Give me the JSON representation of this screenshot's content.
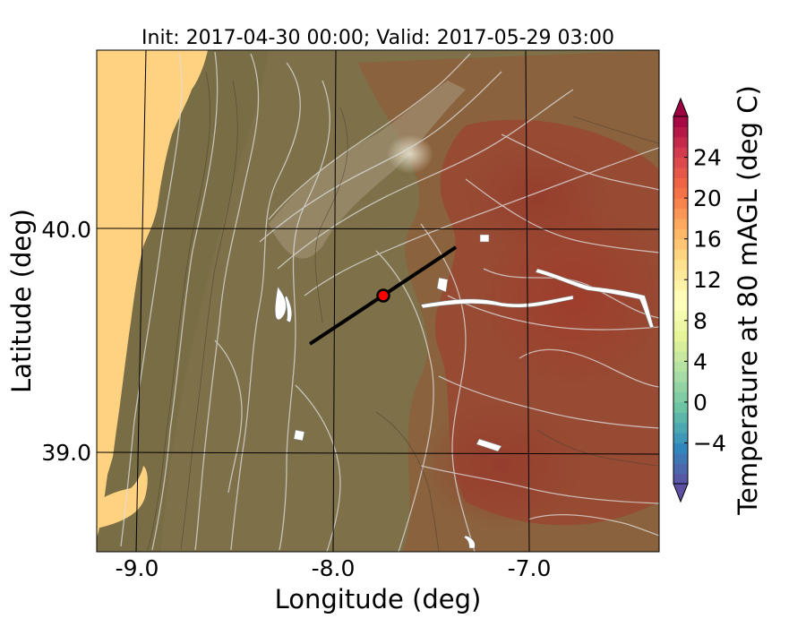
{
  "title": "Init: 2017-04-30 00:00; Valid: 2017-05-29 03:00",
  "map": {
    "xlabel": "Longitude (deg)",
    "ylabel": "Latitude (deg)",
    "x_ticks": [
      "-9.0",
      "-8.0",
      "-7.0"
    ],
    "y_ticks": [
      "40.0",
      "39.0"
    ],
    "extent": {
      "lon": [
        -9.22,
        -6.35
      ],
      "lat": [
        38.55,
        40.8
      ]
    },
    "gridlines": "on",
    "marker": {
      "lon": -7.75,
      "lat": 39.68,
      "color": "#ff0000"
    },
    "cross_section": {
      "start": [
        -8.12,
        39.47
      ],
      "end": [
        -7.38,
        39.91
      ]
    }
  },
  "colorbar": {
    "label": "Temperature at 80 mAGL (deg C)",
    "ticks": [
      "−4",
      "0",
      "4",
      "8",
      "12",
      "16",
      "20",
      "24"
    ],
    "range": [
      -8,
      28
    ],
    "colormap": "Spectral_r"
  },
  "colors": {
    "ocean": "#fed280",
    "land_cool": "#7f7147",
    "land_warm": "#9a4a33",
    "contour": "#d8d8d8"
  }
}
